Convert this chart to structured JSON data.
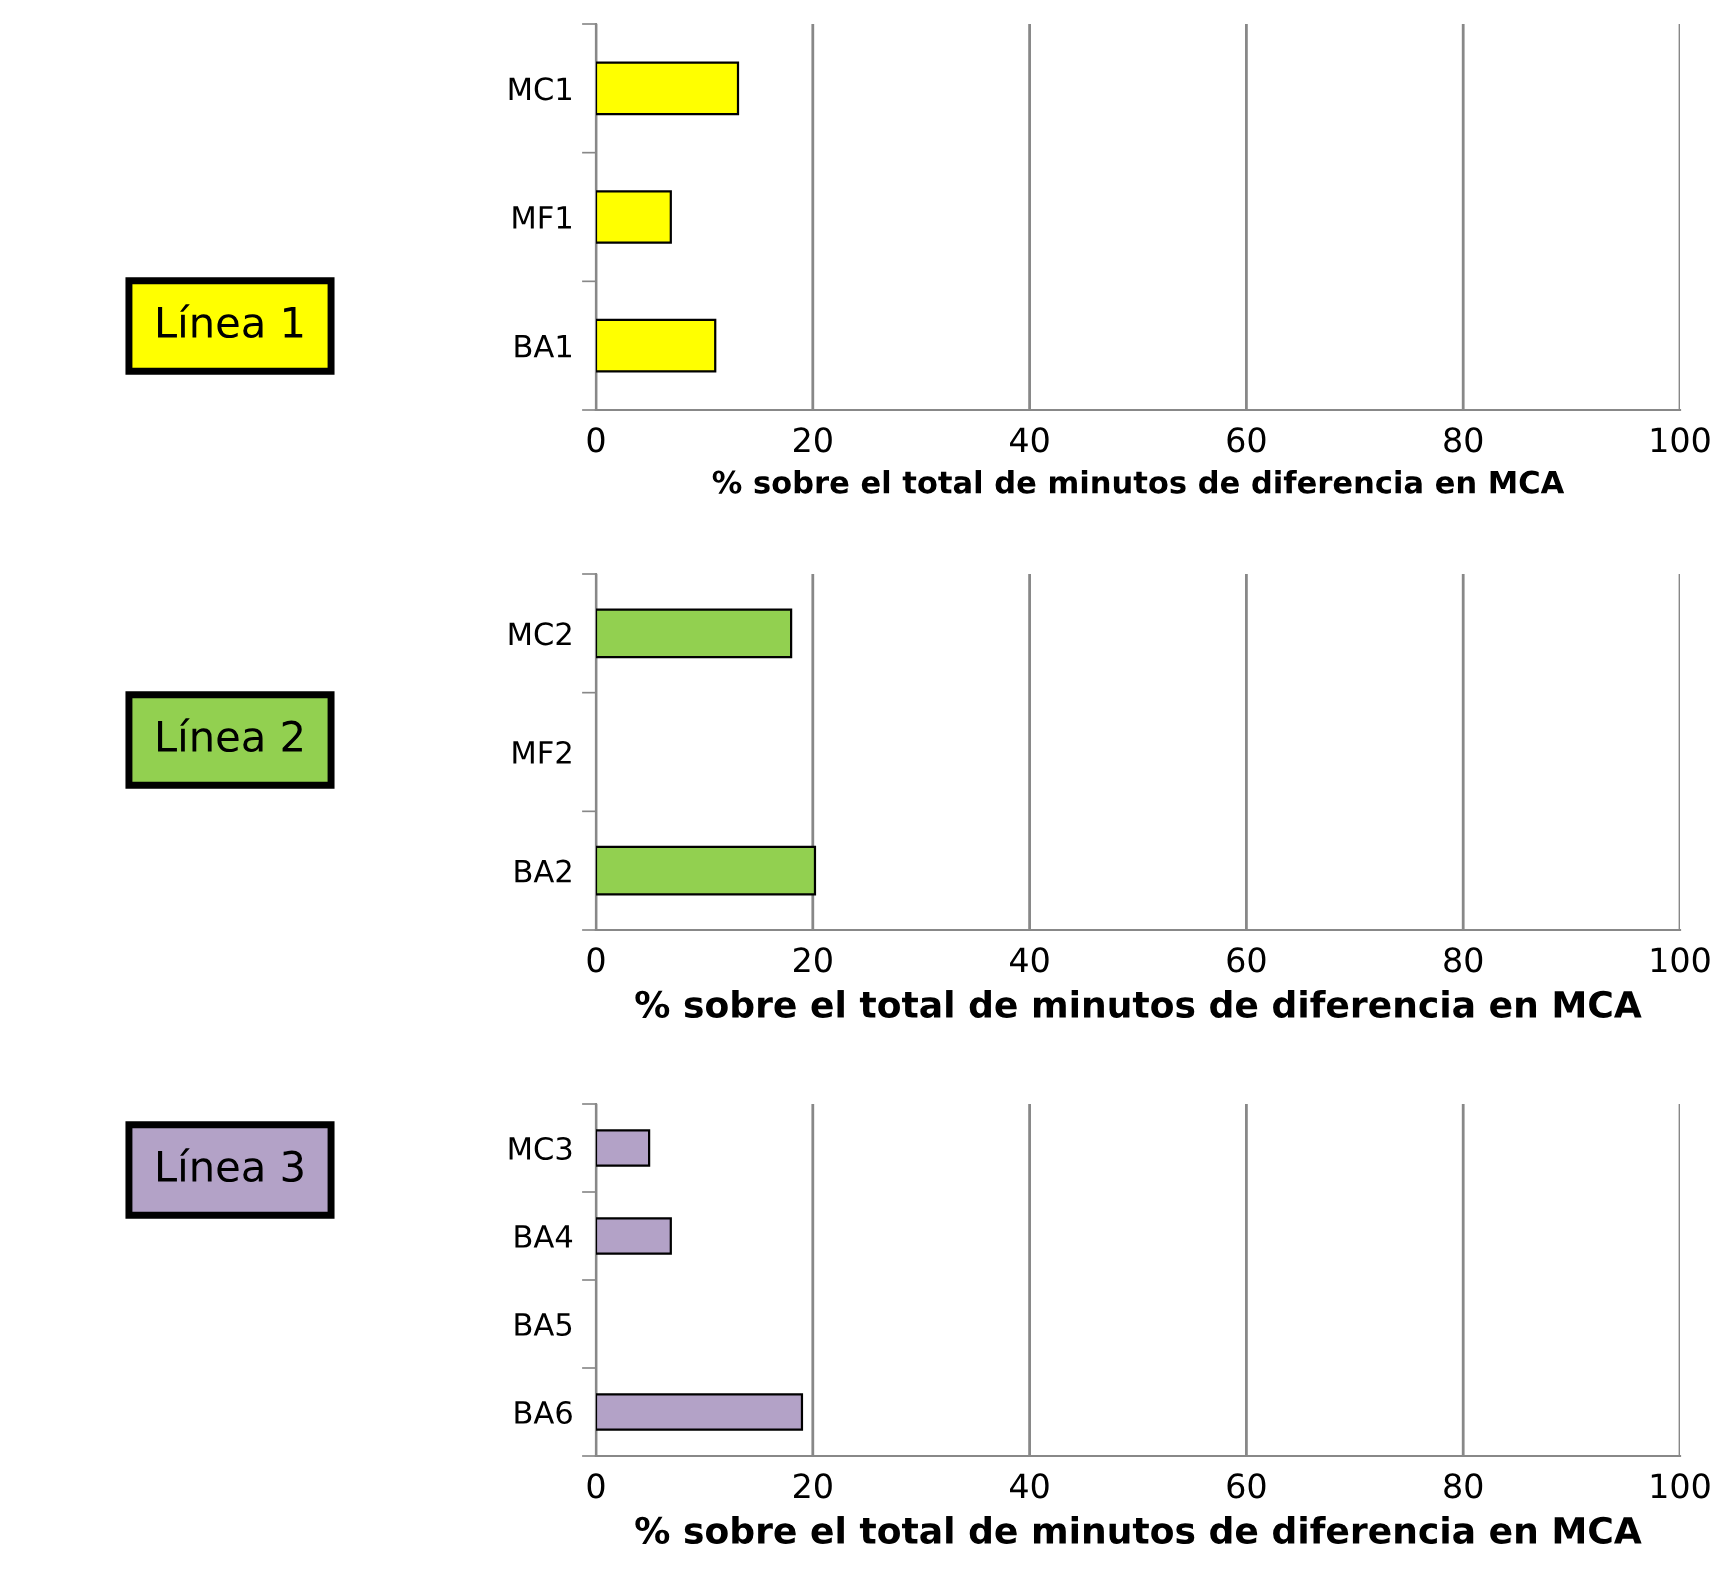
{
  "chart_data": [
    {
      "type": "bar",
      "orientation": "horizontal",
      "title": "Línea 1",
      "categories": [
        "MC1",
        "MF1",
        "BA1"
      ],
      "values": [
        13.1,
        6.9,
        11.0
      ],
      "color": "#ffff00",
      "xlim": [
        0,
        100
      ],
      "xticks": [
        0,
        20,
        40,
        60,
        80,
        100
      ],
      "xlabel": "% sobre el total de minutos de diferencia en MCA",
      "grid": "x"
    },
    {
      "type": "bar",
      "orientation": "horizontal",
      "title": "Línea 2",
      "categories": [
        "MC2",
        "MF2",
        "BA2"
      ],
      "values": [
        18.0,
        null,
        20.2
      ],
      "color": "#92d050",
      "xlim": [
        0,
        100
      ],
      "xticks": [
        0,
        20,
        40,
        60,
        80,
        100
      ],
      "xlabel": "% sobre el total de minutos de diferencia en MCA",
      "grid": "x"
    },
    {
      "type": "bar",
      "orientation": "horizontal",
      "title": "Línea 3",
      "categories": [
        "MC3",
        "BA4",
        "BA5",
        "BA6"
      ],
      "values": [
        4.9,
        6.9,
        null,
        19.0
      ],
      "color": "#b3a2c7",
      "xlim": [
        0,
        100
      ],
      "xticks": [
        0,
        20,
        40,
        60,
        80,
        100
      ],
      "xlabel": "% sobre el total de minutos de diferencia en MCA",
      "grid": "x"
    }
  ]
}
